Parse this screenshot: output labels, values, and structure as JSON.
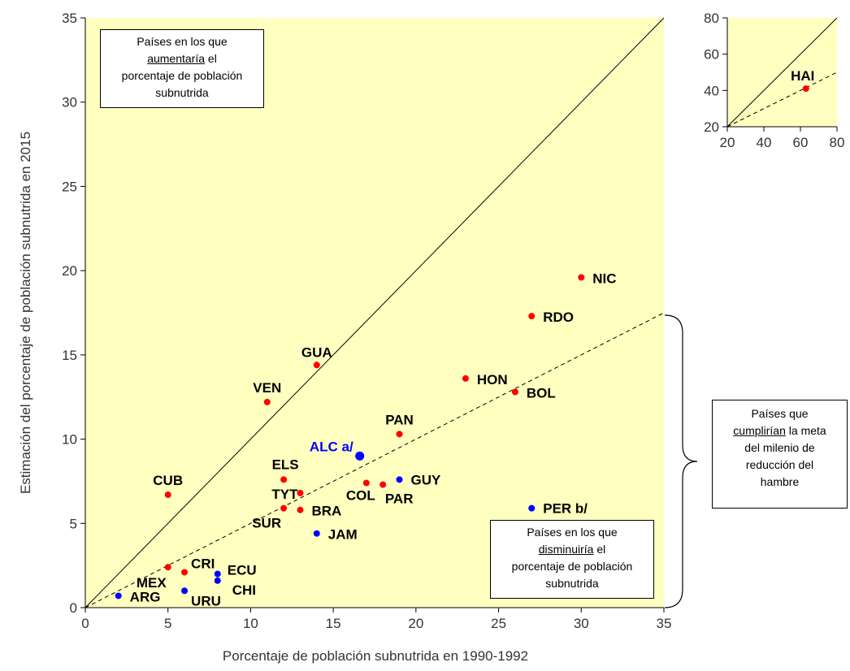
{
  "chart_data": [
    {
      "type": "scatter",
      "xlabel": "Porcentaje de población subnutrida en 1990-1992",
      "ylabel": "Estimación del porcentaje de población subnutrida en 2015",
      "xlim": [
        0,
        35
      ],
      "ylim": [
        0,
        35
      ],
      "x_ticks": [
        0,
        5,
        10,
        15,
        20,
        25,
        30,
        35
      ],
      "y_ticks": [
        0,
        5,
        10,
        15,
        20,
        25,
        30,
        35
      ],
      "background": "#FFFFC0",
      "reference_lines": [
        {
          "style": "solid",
          "slope": 1.0
        },
        {
          "style": "dashed",
          "slope": 0.5
        }
      ],
      "colors": {
        "red": "#FF0000",
        "blue": "#0000FF",
        "labelBlack": "#000000",
        "labelBlue": "#0000FF"
      },
      "points": [
        {
          "label": "NIC",
          "x": 30,
          "y": 19.6,
          "color": "red"
        },
        {
          "label": "RDO",
          "x": 27,
          "y": 17.3,
          "color": "red"
        },
        {
          "label": "HON",
          "x": 23,
          "y": 13.6,
          "color": "red"
        },
        {
          "label": "BOL",
          "x": 26,
          "y": 12.8,
          "color": "red"
        },
        {
          "label": "GUA",
          "x": 14,
          "y": 14.4,
          "color": "red"
        },
        {
          "label": "VEN",
          "x": 11,
          "y": 12.2,
          "color": "red"
        },
        {
          "label": "PAN",
          "x": 19,
          "y": 10.3,
          "color": "red"
        },
        {
          "label": "ALC a/",
          "x": 16.6,
          "y": 9.0,
          "color": "blue",
          "large": true
        },
        {
          "label": "GUY",
          "x": 19,
          "y": 7.6,
          "color": "blue"
        },
        {
          "label": "COL",
          "x": 17,
          "y": 7.4,
          "color": "red"
        },
        {
          "label": "PAR",
          "x": 18,
          "y": 7.3,
          "color": "red"
        },
        {
          "label": "ELS",
          "x": 12,
          "y": 7.6,
          "color": "red"
        },
        {
          "label": "TYT",
          "x": 13,
          "y": 6.8,
          "color": "red"
        },
        {
          "label": "CUB",
          "x": 5,
          "y": 6.7,
          "color": "red"
        },
        {
          "label": "BRA",
          "x": 13,
          "y": 5.8,
          "color": "red"
        },
        {
          "label": "SUR",
          "x": 12,
          "y": 5.9,
          "color": "red"
        },
        {
          "label": "JAM",
          "x": 14,
          "y": 4.4,
          "color": "blue"
        },
        {
          "label": "PER b/",
          "x": 27,
          "y": 5.9,
          "color": "blue"
        },
        {
          "label": "CRI",
          "x": 6,
          "y": 2.1,
          "color": "red"
        },
        {
          "label": "MEX",
          "x": 5,
          "y": 2.4,
          "color": "red"
        },
        {
          "label": "ECU",
          "x": 8,
          "y": 2.0,
          "color": "blue"
        },
        {
          "label": "CHI",
          "x": 8,
          "y": 1.6,
          "color": "blue"
        },
        {
          "label": "URU",
          "x": 6,
          "y": 1.0,
          "color": "blue"
        },
        {
          "label": "ARG",
          "x": 2,
          "y": 0.7,
          "color": "blue"
        }
      ]
    },
    {
      "type": "scatter",
      "inset": true,
      "xlim": [
        20,
        80
      ],
      "ylim": [
        20,
        80
      ],
      "x_ticks": [
        20,
        40,
        60,
        80
      ],
      "y_ticks": [
        20,
        40,
        60,
        80
      ],
      "points": [
        {
          "label": "HAI",
          "x": 63,
          "y": 41,
          "color": "red"
        }
      ]
    }
  ],
  "annotations": {
    "top_left": {
      "line1": "Países en los que",
      "line2_u": "aumentaría",
      "line2_rest": " el",
      "line3": "porcentaje de población",
      "line4": "subnutrida"
    },
    "bottom_right": {
      "line1": "Países en los que",
      "line2_u": "disminuiría",
      "line2_rest": " el",
      "line3": "porcentaje de población",
      "line4": "subnutrida"
    },
    "right": {
      "line1": "Países que",
      "line2_u": "cumplirían",
      "line2_rest": " la meta",
      "line3": "del milenio de",
      "line4": "reducción del",
      "line5": "hambre"
    }
  }
}
